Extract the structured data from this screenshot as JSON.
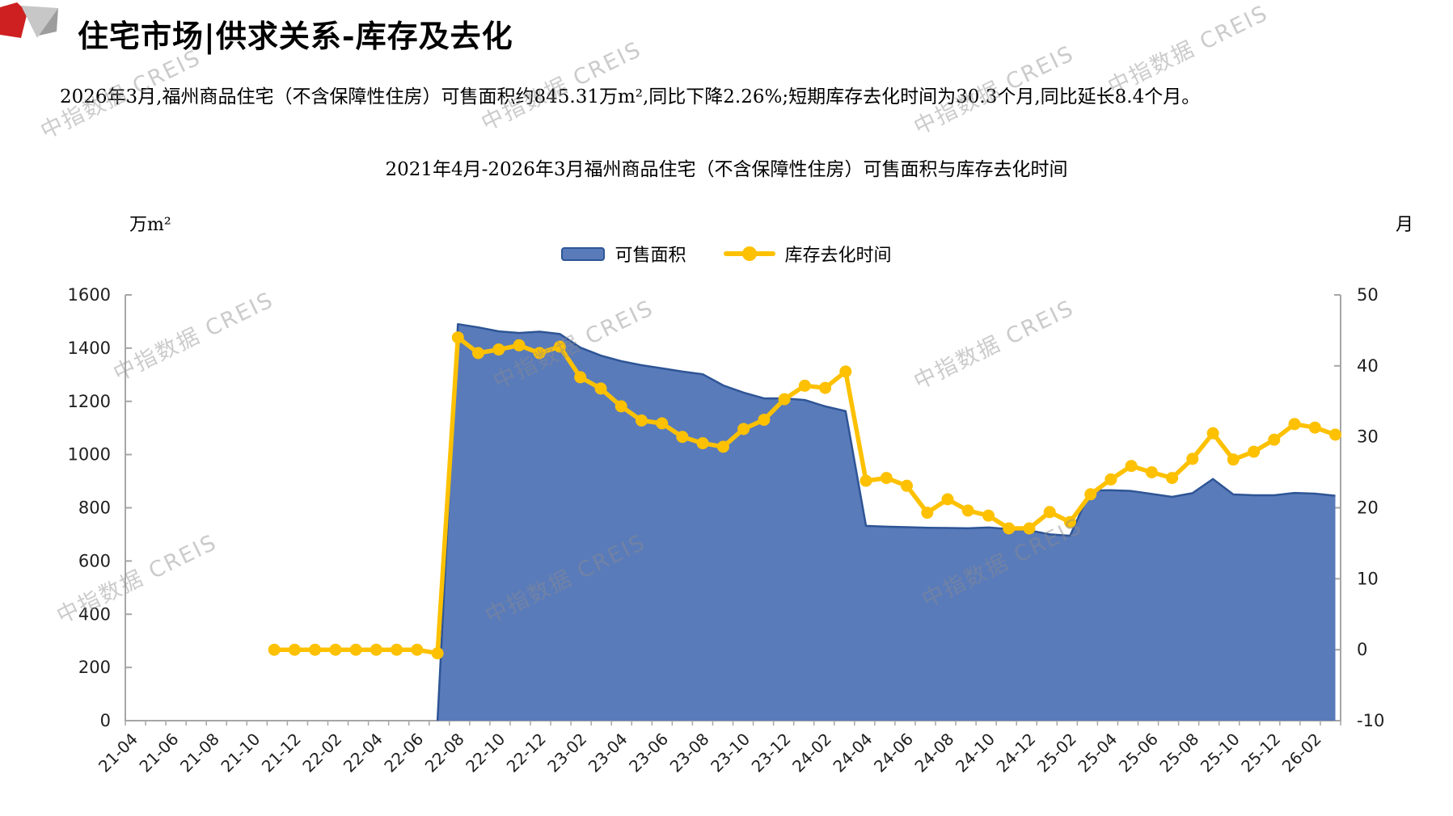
{
  "header": {
    "title": "住宅市场|供求关系-库存及去化"
  },
  "summary": {
    "text": "2026年3月,福州商品住宅（不含保障性住房）可售面积约845.31万m²,同比下降2.26%;短期库存去化时间为30.3个月,同比延长8.4个月。"
  },
  "watermark": {
    "text": "中指数据 CREIS"
  },
  "chart_data": {
    "type": "area+line combo",
    "title": "2021年4月-2026年3月福州商品住宅（不含保障性住房）可售面积与库存去化时间",
    "grid": false,
    "legend_position": "top-center",
    "left_axis": {
      "unit": "万m²",
      "min": 0,
      "max": 1600,
      "step": 200,
      "ticks": [
        0,
        200,
        400,
        600,
        800,
        1000,
        1200,
        1400,
        1600
      ]
    },
    "right_axis": {
      "unit": "月",
      "min": -10,
      "max": 50,
      "step": 10,
      "ticks": [
        -10,
        0,
        10,
        20,
        30,
        40,
        50
      ]
    },
    "categories": [
      "21-04",
      "21-05",
      "21-06",
      "21-07",
      "21-08",
      "21-09",
      "21-10",
      "21-11",
      "21-12",
      "22-01",
      "22-02",
      "22-03",
      "22-04",
      "22-05",
      "22-06",
      "22-07",
      "22-08",
      "22-09",
      "22-10",
      "22-11",
      "22-12",
      "23-01",
      "23-02",
      "23-03",
      "23-04",
      "23-05",
      "23-06",
      "23-07",
      "23-08",
      "23-09",
      "23-10",
      "23-11",
      "23-12",
      "24-01",
      "24-02",
      "24-03",
      "24-04",
      "24-05",
      "24-06",
      "24-07",
      "24-08",
      "24-09",
      "24-10",
      "24-11",
      "24-12",
      "25-01",
      "25-02",
      "25-03",
      "25-04",
      "25-05",
      "25-06",
      "25-07",
      "25-08",
      "25-09",
      "25-10",
      "25-11",
      "25-12",
      "26-01",
      "26-02",
      "26-03"
    ],
    "x_tick_labels": [
      "21-04",
      "21-06",
      "21-08",
      "21-10",
      "21-12",
      "22-02",
      "22-04",
      "22-06",
      "22-08",
      "22-10",
      "22-12",
      "23-02",
      "23-04",
      "23-06",
      "23-08",
      "23-10",
      "23-12",
      "24-02",
      "24-04",
      "24-06",
      "24-08",
      "24-10",
      "24-12",
      "25-02",
      "25-04",
      "25-06",
      "25-08",
      "25-10",
      "25-12",
      "26-02"
    ],
    "series": [
      {
        "name": "可售面积",
        "type": "area",
        "axis": "left",
        "fill": "#5a7bba",
        "stroke": "#2e5596",
        "values": [
          0,
          0,
          0,
          0,
          0,
          0,
          0,
          0,
          0,
          0,
          0,
          0,
          0,
          0,
          0,
          0,
          1490,
          1478,
          1463,
          1457,
          1462,
          1453,
          1402,
          1372,
          1351,
          1336,
          1324,
          1312,
          1302,
          1260,
          1233,
          1211,
          1211,
          1205,
          1181,
          1163,
          732,
          729,
          727,
          725,
          724,
          723,
          726,
          720,
          715,
          700,
          695,
          865,
          866,
          863,
          852,
          841,
          855,
          908,
          850,
          847,
          847,
          856,
          853,
          845.31
        ]
      },
      {
        "name": "库存去化时间",
        "type": "line",
        "axis": "right",
        "color": "#fdc101",
        "values": [
          null,
          null,
          null,
          null,
          null,
          null,
          null,
          0,
          0,
          0,
          0,
          0,
          0,
          0,
          0,
          -0.5,
          44,
          41.8,
          42.3,
          42.9,
          41.8,
          42.7,
          38.4,
          36.8,
          34.3,
          32.3,
          31.9,
          30,
          29.1,
          28.6,
          31.1,
          32.4,
          35.3,
          37.2,
          36.9,
          39.2,
          23.8,
          24.2,
          23.1,
          19.3,
          21.2,
          19.6,
          18.9,
          17.1,
          17.1,
          19.4,
          18,
          21.9,
          24,
          25.9,
          25,
          24.2,
          26.9,
          30.5,
          26.8,
          27.9,
          29.6,
          31.8,
          31.3,
          30.3
        ]
      }
    ]
  }
}
